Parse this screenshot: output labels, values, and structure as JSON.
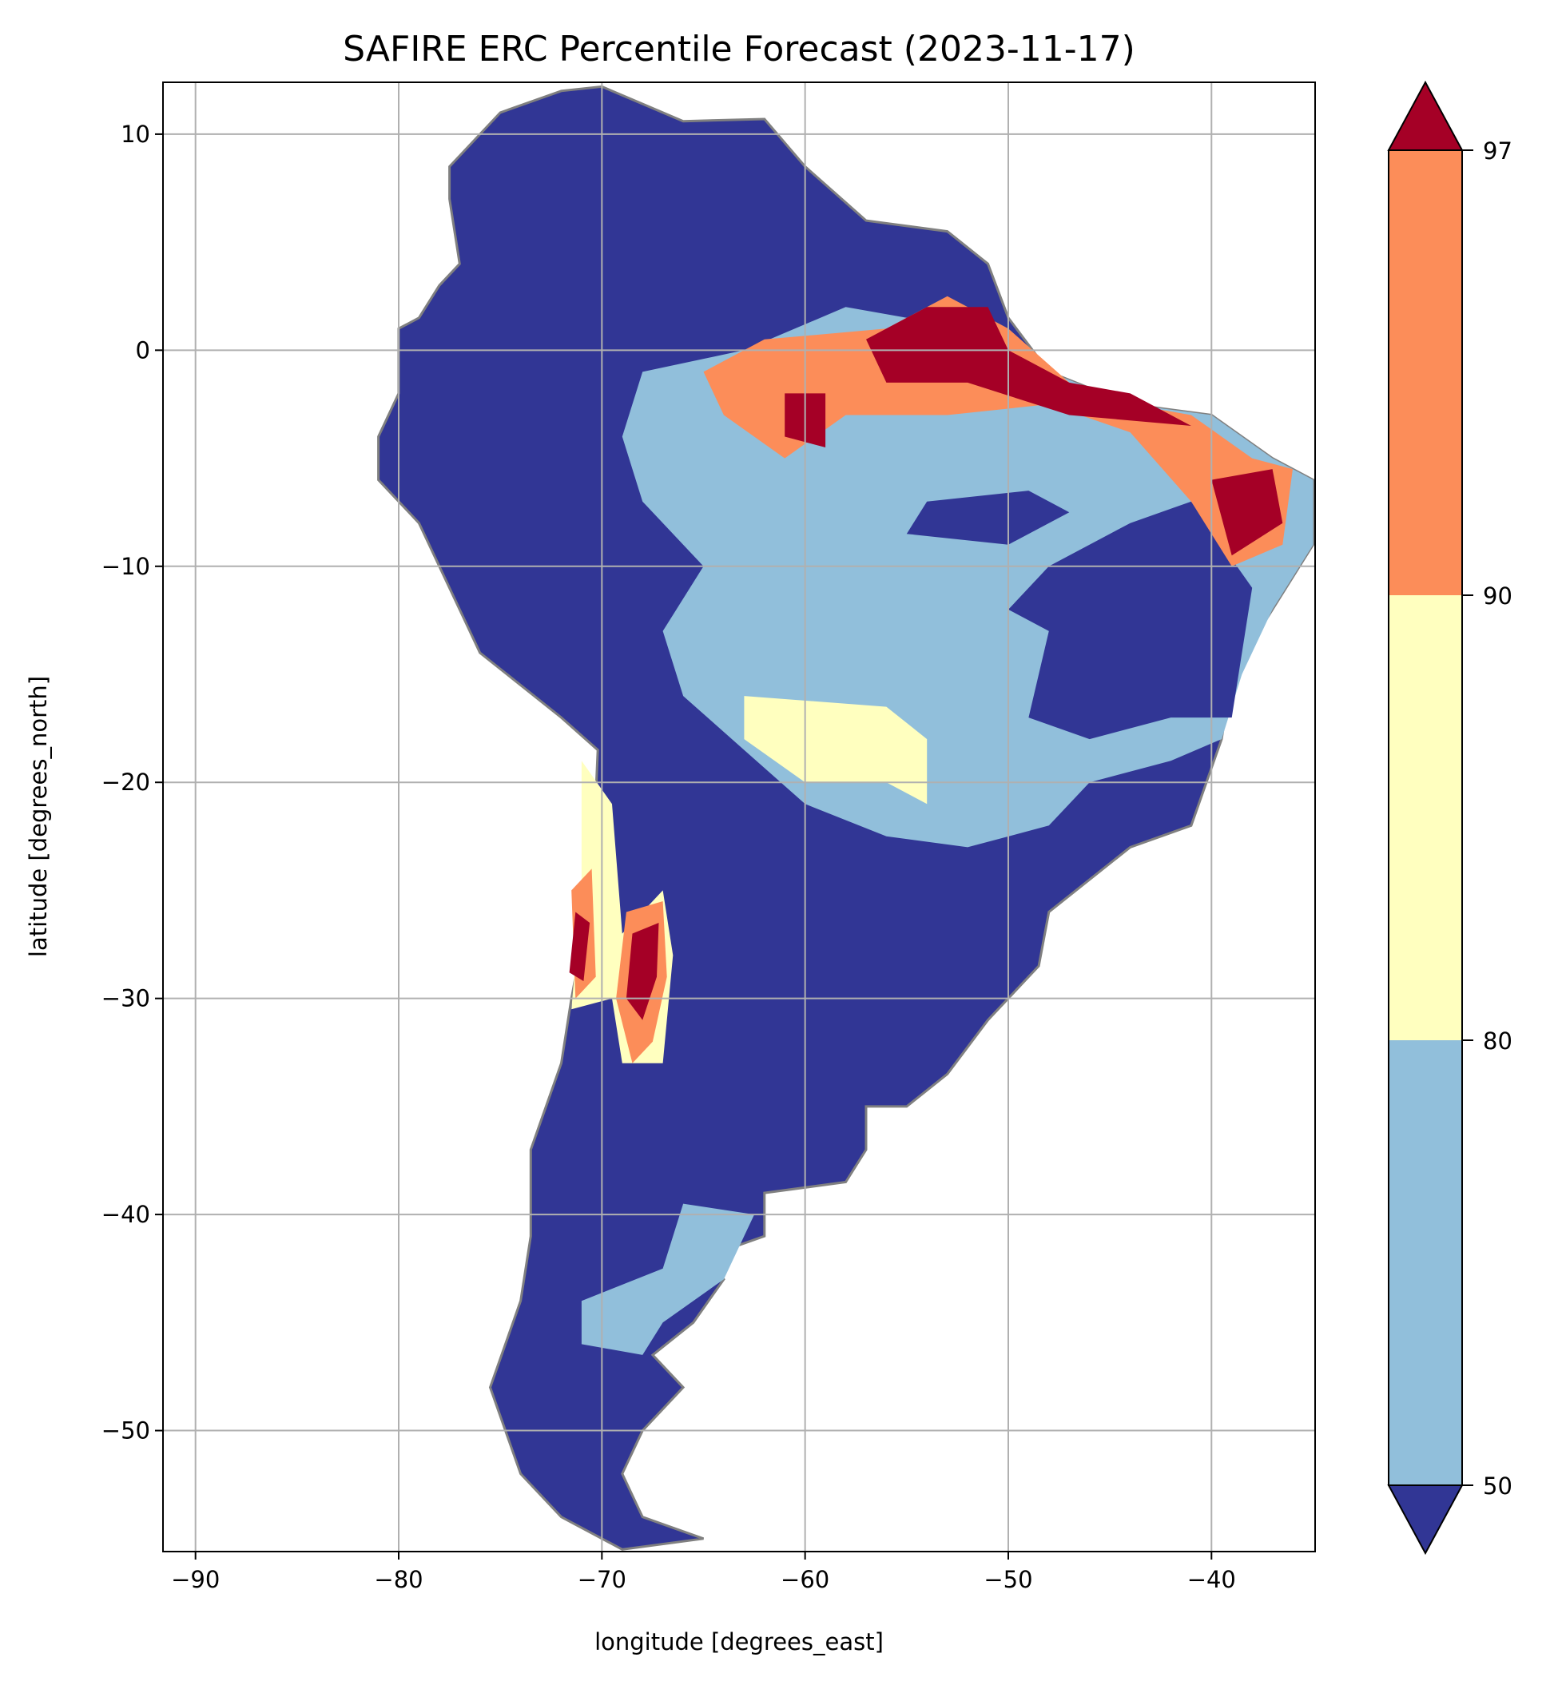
{
  "chart_data": {
    "type": "heatmap",
    "title": "SAFIRE ERC Percentile Forecast (2023-11-17)",
    "xlabel": "longitude [degrees_east]",
    "ylabel": "latitude [degrees_north]",
    "xlim": [
      -91.6,
      -34.9
    ],
    "ylim": [
      -55.6,
      12.4
    ],
    "xticks": [
      -90,
      -80,
      -70,
      -60,
      -50,
      -40
    ],
    "yticks": [
      10,
      0,
      -10,
      -20,
      -30,
      -40,
      -50
    ],
    "xtick_labels": [
      "−90",
      "−80",
      "−70",
      "−60",
      "−50",
      "−40"
    ],
    "ytick_labels": [
      "10",
      "0",
      "−10",
      "−20",
      "−30",
      "−40",
      "−50"
    ],
    "grid": true,
    "colorbar": {
      "position": "right",
      "ticks": [
        50,
        80,
        90,
        97
      ],
      "tick_labels": [
        "50",
        "80",
        "90",
        "97"
      ],
      "extend": "both",
      "bins": [
        {
          "range": "<50",
          "color": "#313695"
        },
        {
          "range": "50-80",
          "color": "#91bfdb"
        },
        {
          "range": "80-90",
          "color": "#ffffbf"
        },
        {
          "range": "90-97",
          "color": "#fc8d59"
        },
        {
          "range": ">97",
          "color": "#a50026"
        }
      ]
    },
    "coastline_color": "#808080",
    "regions": [
      {
        "class": "<50",
        "lonlat": [
          [
            -77.5,
            8.5
          ],
          [
            -75,
            11
          ],
          [
            -72,
            12
          ],
          [
            -70,
            12.2
          ],
          [
            -66,
            10.6
          ],
          [
            -62,
            10.7
          ],
          [
            -60,
            8.5
          ],
          [
            -57,
            6
          ],
          [
            -53,
            5.5
          ],
          [
            -51,
            4
          ],
          [
            -50,
            1.5
          ],
          [
            -48,
            -1
          ],
          [
            -44,
            -2.5
          ],
          [
            -40,
            -3
          ],
          [
            -37,
            -5
          ],
          [
            -35,
            -6
          ],
          [
            -35,
            -9
          ],
          [
            -37,
            -12
          ],
          [
            -39,
            -15
          ],
          [
            -39.5,
            -18
          ],
          [
            -41,
            -22
          ],
          [
            -44,
            -23
          ],
          [
            -48,
            -26
          ],
          [
            -48.5,
            -28.5
          ],
          [
            -51,
            -31
          ],
          [
            -53,
            -33.5
          ],
          [
            -55,
            -35
          ],
          [
            -57,
            -35
          ],
          [
            -57,
            -37
          ],
          [
            -58,
            -38.5
          ],
          [
            -62,
            -39
          ],
          [
            -62,
            -41
          ],
          [
            -65,
            -42
          ],
          [
            -64,
            -43
          ],
          [
            -65.5,
            -45
          ],
          [
            -67.5,
            -46.5
          ],
          [
            -66,
            -48
          ],
          [
            -68,
            -50
          ],
          [
            -69,
            -52
          ],
          [
            -68,
            -54
          ],
          [
            -65,
            -55
          ],
          [
            -69,
            -55.5
          ],
          [
            -72,
            -54
          ],
          [
            -74,
            -52
          ],
          [
            -75.5,
            -48
          ],
          [
            -74,
            -44
          ],
          [
            -73.5,
            -41
          ],
          [
            -73.5,
            -37
          ],
          [
            -72,
            -33
          ],
          [
            -71.5,
            -30
          ],
          [
            -70.5,
            -25
          ],
          [
            -70.2,
            -18.5
          ],
          [
            -72,
            -17
          ],
          [
            -76,
            -14
          ],
          [
            -77,
            -12
          ],
          [
            -79,
            -8
          ],
          [
            -81,
            -6
          ],
          [
            -81,
            -4
          ],
          [
            -80,
            -2
          ],
          [
            -80,
            1
          ],
          [
            -79,
            1.5
          ],
          [
            -78,
            3
          ],
          [
            -77,
            4
          ],
          [
            -77.5,
            7
          ]
        ]
      },
      {
        "class": "50-80",
        "lonlat": [
          [
            -68,
            -1
          ],
          [
            -63,
            0
          ],
          [
            -58,
            2
          ],
          [
            -52,
            1
          ],
          [
            -48,
            -1
          ],
          [
            -44,
            -2.5
          ],
          [
            -40,
            -3
          ],
          [
            -37,
            -5
          ],
          [
            -35,
            -6
          ],
          [
            -35,
            -9
          ],
          [
            -37,
            -12
          ],
          [
            -38.5,
            -15
          ],
          [
            -39.5,
            -18
          ],
          [
            -42,
            -19
          ],
          [
            -46,
            -20
          ],
          [
            -48,
            -22
          ],
          [
            -52,
            -23
          ],
          [
            -56,
            -22.5
          ],
          [
            -60,
            -21
          ],
          [
            -63,
            -18.5
          ],
          [
            -66,
            -16
          ],
          [
            -67,
            -13
          ],
          [
            -65,
            -10
          ],
          [
            -68,
            -7
          ],
          [
            -69,
            -4
          ]
        ]
      },
      {
        "class": "50-80",
        "lonlat": [
          [
            -66,
            -39.5
          ],
          [
            -62.5,
            -40
          ],
          [
            -64,
            -43
          ],
          [
            -67,
            -45
          ],
          [
            -68,
            -46.5
          ],
          [
            -71,
            -46
          ],
          [
            -71,
            -44
          ],
          [
            -67,
            -42.5
          ]
        ]
      },
      {
        "class": "<50",
        "lonlat": [
          [
            -48,
            -10
          ],
          [
            -44,
            -8
          ],
          [
            -41,
            -7
          ],
          [
            -38,
            -11
          ],
          [
            -39,
            -17
          ],
          [
            -42,
            -17
          ],
          [
            -46,
            -18
          ],
          [
            -49,
            -17
          ],
          [
            -48,
            -13
          ],
          [
            -50,
            -12
          ]
        ]
      },
      {
        "class": "<50",
        "lonlat": [
          [
            -54,
            -7
          ],
          [
            -49,
            -6.5
          ],
          [
            -47,
            -7.5
          ],
          [
            -50,
            -9
          ],
          [
            -55,
            -8.5
          ]
        ]
      },
      {
        "class": "80-90",
        "lonlat": [
          [
            -63,
            -16
          ],
          [
            -56,
            -16.5
          ],
          [
            -54,
            -18
          ],
          [
            -54,
            -21
          ],
          [
            -56,
            -20
          ],
          [
            -60,
            -20
          ],
          [
            -63,
            -18
          ]
        ]
      },
      {
        "class": "80-90",
        "lonlat": [
          [
            -71,
            -19
          ],
          [
            -69.5,
            -21
          ],
          [
            -69,
            -27
          ],
          [
            -67,
            -25
          ],
          [
            -66.5,
            -28
          ],
          [
            -67,
            -33
          ],
          [
            -69,
            -33
          ],
          [
            -69.5,
            -30
          ],
          [
            -71.5,
            -30.5
          ],
          [
            -71,
            -25
          ]
        ]
      },
      {
        "class": "90-97",
        "lonlat": [
          [
            -65,
            -1
          ],
          [
            -62,
            0.5
          ],
          [
            -56,
            1
          ],
          [
            -53,
            2.5
          ],
          [
            -50,
            1
          ],
          [
            -47,
            -1.5
          ],
          [
            -44,
            -2.5
          ],
          [
            -41,
            -3
          ],
          [
            -38,
            -5
          ],
          [
            -36,
            -5.5
          ],
          [
            -36.5,
            -9
          ],
          [
            -39,
            -10
          ],
          [
            -41,
            -7
          ],
          [
            -44,
            -3.8
          ],
          [
            -48,
            -2.5
          ],
          [
            -53,
            -3
          ],
          [
            -58,
            -3
          ],
          [
            -61,
            -5
          ],
          [
            -64,
            -3
          ]
        ]
      },
      {
        "class": "90-97",
        "lonlat": [
          [
            -71.5,
            -25
          ],
          [
            -70.5,
            -24
          ],
          [
            -70.3,
            -29
          ],
          [
            -71.3,
            -30
          ]
        ]
      },
      {
        "class": "90-97",
        "lonlat": [
          [
            -68.8,
            -26
          ],
          [
            -67,
            -25.5
          ],
          [
            -66.8,
            -29
          ],
          [
            -67.5,
            -32
          ],
          [
            -68.5,
            -33
          ],
          [
            -69.3,
            -30
          ]
        ]
      },
      {
        "class": ">97",
        "lonlat": [
          [
            -57,
            0.5
          ],
          [
            -54,
            2
          ],
          [
            -51,
            2
          ],
          [
            -50,
            0
          ],
          [
            -47,
            -1.5
          ],
          [
            -44,
            -2
          ],
          [
            -41,
            -3.5
          ],
          [
            -47,
            -3
          ],
          [
            -52,
            -1.5
          ],
          [
            -56,
            -1.5
          ]
        ]
      },
      {
        "class": ">97",
        "lonlat": [
          [
            -61,
            -2
          ],
          [
            -59,
            -2
          ],
          [
            -59,
            -4.5
          ],
          [
            -61,
            -4
          ]
        ]
      },
      {
        "class": ">97",
        "lonlat": [
          [
            -40,
            -6
          ],
          [
            -37,
            -5.5
          ],
          [
            -36.5,
            -8
          ],
          [
            -39,
            -9.5
          ]
        ]
      },
      {
        "class": ">97",
        "lonlat": [
          [
            -71.3,
            -26
          ],
          [
            -70.6,
            -26.5
          ],
          [
            -70.9,
            -29.2
          ],
          [
            -71.6,
            -28.8
          ]
        ]
      },
      {
        "class": ">97",
        "lonlat": [
          [
            -68.5,
            -27
          ],
          [
            -67.2,
            -26.5
          ],
          [
            -67.3,
            -29
          ],
          [
            -68,
            -31
          ],
          [
            -68.8,
            -30
          ]
        ]
      }
    ]
  }
}
